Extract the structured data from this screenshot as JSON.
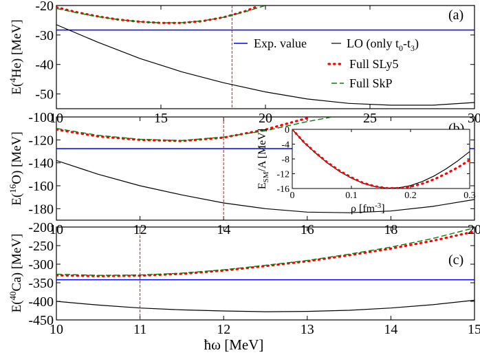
{
  "chart_data": [
    {
      "type": "line",
      "panel_label": "(a)",
      "ylabel_main": "E(",
      "ylabel_sup": "4",
      "ylabel_rest": "He) [MeV]",
      "xlim": [
        10,
        30
      ],
      "ylim": [
        -55,
        -20
      ],
      "xticks": [
        10,
        15,
        20,
        25,
        30
      ],
      "yticks": [
        -50,
        -40,
        -30,
        -20
      ],
      "xtick_labels": [
        "10",
        "15",
        "20",
        "25",
        "30"
      ],
      "ytick_labels": [
        "-50",
        "-40",
        "-30",
        "-20"
      ],
      "exp_value": -28.3,
      "vline_x": 18.4,
      "series": [
        {
          "name": "LO (only t0-t3)",
          "style": "solid",
          "color": "#000000",
          "x": [
            10,
            12,
            14,
            16,
            18,
            20,
            22,
            24,
            26,
            28,
            30
          ],
          "y": [
            -26.5,
            -32.5,
            -38.0,
            -42.5,
            -46.2,
            -49.3,
            -51.7,
            -53.2,
            -53.8,
            -53.8,
            -52.9
          ]
        },
        {
          "name": "Full SLy5",
          "style": "dotted",
          "color": "#ff0000",
          "x": [
            10,
            11,
            12,
            13,
            14,
            15,
            16,
            17,
            18,
            19,
            19.5
          ],
          "y": [
            -20.6,
            -22.3,
            -23.7,
            -24.8,
            -25.5,
            -25.9,
            -25.9,
            -25.3,
            -24.0,
            -22.0,
            -20.6
          ]
        },
        {
          "name": "Full SkP",
          "style": "dashed",
          "color": "#008000",
          "x": [
            10,
            11,
            12,
            13,
            14,
            15,
            16,
            17,
            18,
            19,
            20
          ],
          "y": [
            -21.0,
            -22.5,
            -23.8,
            -24.8,
            -25.5,
            -25.9,
            -25.8,
            -25.2,
            -24.0,
            -22.2,
            -20.0
          ]
        }
      ]
    },
    {
      "type": "line",
      "panel_label": "(b)",
      "ylabel_main": "E(",
      "ylabel_sup": "16",
      "ylabel_rest": "O) [MeV]",
      "xlim": [
        10,
        20
      ],
      "ylim": [
        -190,
        -100
      ],
      "xticks": [
        10,
        12,
        14,
        16,
        18,
        20
      ],
      "yticks": [
        -180,
        -160,
        -140,
        -120,
        -100
      ],
      "xtick_labels": [
        "10",
        "12",
        "14",
        "16",
        "18",
        "20"
      ],
      "ytick_labels": [
        "-180",
        "-160",
        "-140",
        "-120",
        "-100"
      ],
      "exp_value": -127.6,
      "vline_x": 14.0,
      "series": [
        {
          "name": "LO (only t0-t3)",
          "style": "solid",
          "color": "#000000",
          "x": [
            10,
            11,
            12,
            13,
            14,
            15,
            16,
            17,
            18,
            19,
            20
          ],
          "y": [
            -138,
            -150,
            -160,
            -168,
            -175,
            -180,
            -183,
            -183.5,
            -182,
            -178,
            -172
          ]
        },
        {
          "name": "Full SLy5",
          "style": "dotted",
          "color": "#ff0000",
          "x": [
            10,
            11,
            12,
            13,
            14,
            15,
            16
          ],
          "y": [
            -111,
            -117,
            -120,
            -121,
            -118,
            -111,
            -101
          ]
        },
        {
          "name": "Full SkP",
          "style": "dashed",
          "color": "#008000",
          "x": [
            10,
            11,
            12,
            13,
            14,
            15,
            16,
            16.6
          ],
          "y": [
            -110,
            -116,
            -119.5,
            -120.5,
            -117.5,
            -112,
            -104,
            -100
          ]
        }
      ],
      "inset": {
        "ylabel_main": "E",
        "ylabel_sub": "SM",
        "ylabel_rest": "/A [MeV]",
        "xlabel_main": "ρ [fm",
        "xlabel_sup": "-3",
        "xlabel_rest": "]",
        "xlim": [
          0,
          0.3
        ],
        "ylim": [
          -16,
          0
        ],
        "xticks": [
          0,
          0.1,
          0.2,
          0.3
        ],
        "yticks": [
          -16,
          -12,
          -8,
          -4,
          0
        ],
        "xtick_labels": [
          "0",
          "0.1",
          "0.2",
          "0.3"
        ],
        "ytick_labels": [
          "-16",
          "-12",
          "-8",
          "-4",
          "0"
        ],
        "series": [
          {
            "name": "LO (only t0-t3)",
            "style": "solid",
            "color": "#000000",
            "x": [
              0,
              0.02,
              0.04,
              0.06,
              0.08,
              0.1,
              0.12,
              0.14,
              0.16,
              0.18,
              0.2,
              0.22,
              0.24,
              0.26,
              0.28,
              0.3
            ],
            "y": [
              0,
              -3.6,
              -6.5,
              -9.2,
              -11.4,
              -13.2,
              -14.6,
              -15.5,
              -15.9,
              -15.8,
              -15.2,
              -14.1,
              -12.6,
              -10.7,
              -8.5,
              -6.0
            ]
          },
          {
            "name": "Full SLy5",
            "style": "dotted",
            "color": "#ff0000",
            "x": [
              0,
              0.02,
              0.04,
              0.06,
              0.08,
              0.1,
              0.12,
              0.14,
              0.16,
              0.18,
              0.2,
              0.22,
              0.24,
              0.26,
              0.28,
              0.3
            ],
            "y": [
              0,
              -3.5,
              -6.4,
              -9.0,
              -11.2,
              -13.0,
              -14.5,
              -15.4,
              -15.9,
              -15.9,
              -15.5,
              -14.7,
              -13.5,
              -12.0,
              -10.3,
              -8.3
            ]
          }
        ]
      }
    },
    {
      "type": "line",
      "panel_label": "(c)",
      "ylabel_main": "E(",
      "ylabel_sup": "40",
      "ylabel_rest": "Ca) [MeV]",
      "xlabel_main": "ħω [MeV]",
      "xlim": [
        10,
        15
      ],
      "ylim": [
        -450,
        -200
      ],
      "xticks": [
        10,
        11,
        12,
        13,
        14,
        15
      ],
      "yticks": [
        -450,
        -400,
        -350,
        -300,
        -250,
        -200
      ],
      "xtick_labels": [
        "10",
        "11",
        "12",
        "13",
        "14",
        "15"
      ],
      "ytick_labels": [
        "-450",
        "-400",
        "-350",
        "-300",
        "-250",
        "-200"
      ],
      "exp_value": -342,
      "vline_x": 11.0,
      "series": [
        {
          "name": "LO (only t0-t3)",
          "style": "solid",
          "color": "#000000",
          "x": [
            10,
            10.5,
            11,
            11.5,
            12,
            12.5,
            13,
            13.5,
            14,
            14.5,
            15
          ],
          "y": [
            -400,
            -410,
            -418,
            -423,
            -426,
            -428,
            -427,
            -424,
            -418,
            -409,
            -397
          ]
        },
        {
          "name": "Full SLy5",
          "style": "dotted",
          "color": "#ff0000",
          "x": [
            10,
            10.5,
            11,
            11.5,
            12,
            12.5,
            13,
            13.5,
            14,
            14.5,
            15
          ],
          "y": [
            -330,
            -332,
            -331,
            -326,
            -317,
            -305,
            -292,
            -276,
            -258,
            -237,
            -212
          ]
        },
        {
          "name": "Full SkP",
          "style": "dashed",
          "color": "#008000",
          "x": [
            10,
            10.5,
            11,
            11.5,
            12,
            12.5,
            13,
            13.5,
            14,
            14.5,
            15
          ],
          "y": [
            -327,
            -330,
            -329,
            -324,
            -315,
            -303,
            -290,
            -273,
            -254,
            -231,
            -202
          ]
        }
      ]
    }
  ],
  "legend": {
    "exp": "Exp. value",
    "lo_main": "LO (only t",
    "lo_sub0": "0",
    "lo_mid": "-t",
    "lo_sub3": "3",
    "lo_end": ")",
    "sly5": "Full SLy5",
    "skp": "Full SkP"
  },
  "colors": {
    "exp": "#0000ff",
    "lo": "#000000",
    "sly5": "#ff0000",
    "skp": "#008000",
    "vline": "#ff0000"
  }
}
